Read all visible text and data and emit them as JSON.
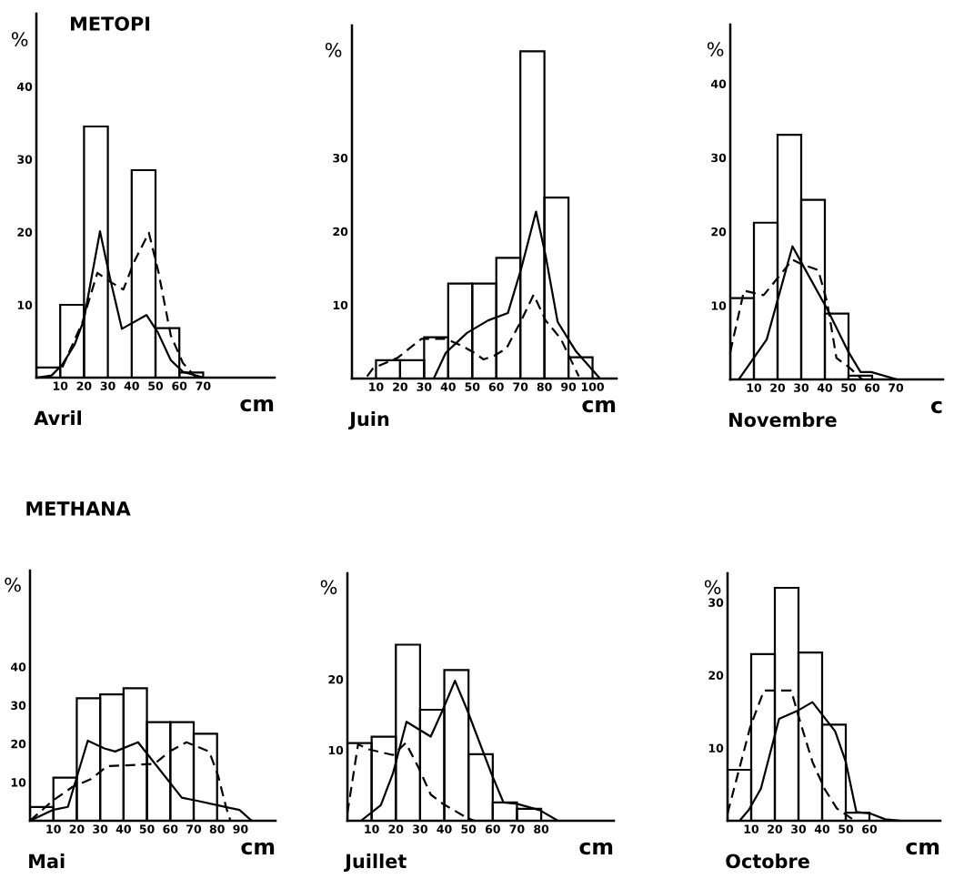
{
  "chart_data": [
    {
      "type": "histogram",
      "title": "Avril",
      "xlabel": "cm",
      "ylabel": "%",
      "annotations": [
        "METOPI"
      ],
      "color": "#000000",
      "xlim": [
        0,
        100
      ],
      "ylim": [
        0,
        50
      ],
      "xticks": [
        10,
        20,
        30,
        40,
        50,
        60,
        70
      ],
      "yticks": [
        10,
        20,
        30,
        40
      ],
      "bins": [
        0,
        10,
        20,
        30,
        40,
        50,
        60,
        70
      ],
      "values": [
        1.4,
        10,
        34.5,
        0,
        28.5,
        6.8,
        0.7
      ],
      "series": [
        {
          "type": "line",
          "line_style": "solid",
          "color": "#000000",
          "x": [
            0,
            6.4,
            10.9,
            16,
            19.9,
            26.7,
            30.8,
            35.9,
            46.2,
            51,
            56.4,
            61.5,
            69.2
          ],
          "values": [
            0,
            0.3,
            1.8,
            4.5,
            7.9,
            20.1,
            13.8,
            6.7,
            8.6,
            6.2,
            2.4,
            0.8,
            0.1
          ]
        },
        {
          "type": "line",
          "line_style": "dashed",
          "color": "#000000",
          "x": [
            10.9,
            19.2,
            25.6,
            30.8,
            36.5,
            41,
            47.2,
            51.3,
            56.4,
            61.5,
            66.7
          ],
          "values": [
            1.4,
            7.5,
            14.4,
            13.2,
            12.1,
            15.9,
            19.9,
            14.4,
            5.8,
            2,
            0.1
          ]
        }
      ]
    },
    {
      "type": "histogram",
      "title": "Juin",
      "xlabel": "cm",
      "ylabel": "%",
      "color": "#000000",
      "xlim": [
        0,
        110
      ],
      "ylim": [
        0,
        48
      ],
      "xticks": [
        10,
        20,
        30,
        40,
        50,
        60,
        70,
        80,
        90,
        100
      ],
      "yticks": [
        10,
        20,
        30
      ],
      "bins": [
        0,
        10,
        20,
        30,
        40,
        50,
        60,
        70,
        80,
        90,
        100
      ],
      "values": [
        0,
        2.5,
        2.5,
        5.6,
        12.9,
        12.9,
        16.4,
        44.5,
        24.6,
        2.9
      ],
      "series": [
        {
          "type": "line",
          "line_style": "solid",
          "color": "#000000",
          "x": [
            34,
            39,
            47.8,
            56.6,
            64.8,
            70.4,
            76.5,
            80.5,
            85.5,
            93.1,
            103.1
          ],
          "values": [
            0,
            3.5,
            6.2,
            7.9,
            8.9,
            15,
            22.7,
            16.7,
            7.7,
            3.7,
            0
          ]
        },
        {
          "type": "line",
          "line_style": "dashed",
          "color": "#000000",
          "x": [
            6.3,
            8.8,
            18.9,
            28.9,
            39,
            45.3,
            50.9,
            54.7,
            59.1,
            64.2,
            70.4,
            75.5,
            80.5,
            86.8,
            94.3
          ],
          "values": [
            0.3,
            1.4,
            2.8,
            5.4,
            5.4,
            4.5,
            3.5,
            2.6,
            3.1,
            4.1,
            7.9,
            11.4,
            7.9,
            5.4,
            0.3
          ]
        }
      ]
    },
    {
      "type": "histogram",
      "title": "Novembre",
      "xlabel": "c",
      "ylabel": "%",
      "color": "#000000",
      "xlim": [
        0,
        90
      ],
      "ylim": [
        0,
        48
      ],
      "xticks": [
        10,
        20,
        30,
        40,
        50,
        60,
        70
      ],
      "yticks": [
        10,
        20,
        30,
        40
      ],
      "bins": [
        0,
        10,
        20,
        30,
        40,
        50,
        60
      ],
      "values": [
        11,
        21.2,
        33.1,
        24.3,
        8.9,
        0.5
      ],
      "series": [
        {
          "type": "line",
          "line_style": "solid",
          "color": "#000000",
          "x": [
            3.8,
            15.4,
            26.3,
            30.1,
            41,
            50,
            55.1,
            59.6,
            70.5
          ],
          "values": [
            0.1,
            5.4,
            18,
            15.8,
            9.5,
            3.7,
            1,
            1,
            0
          ]
        },
        {
          "type": "line",
          "line_style": "dashed",
          "color": "#000000",
          "x": [
            0,
            5.8,
            14.1,
            20.5,
            26.3,
            30.1,
            37.2,
            41,
            44.9,
            50,
            55.8
          ],
          "values": [
            3.7,
            12,
            11.4,
            13.9,
            16.2,
            15.6,
            14.8,
            10.4,
            2.9,
            1.7,
            0
          ]
        }
      ]
    },
    {
      "type": "histogram",
      "title": "Mai",
      "xlabel": "cm",
      "ylabel": "%",
      "annotations": [
        "METHANA"
      ],
      "color": "#000000",
      "xlim": [
        0,
        105
      ],
      "ylim": [
        0,
        65
      ],
      "xticks": [
        10,
        20,
        30,
        40,
        50,
        60,
        70,
        80,
        90
      ],
      "yticks": [
        10,
        20,
        30,
        40
      ],
      "bins": [
        0,
        10,
        20,
        30,
        40,
        50,
        60,
        70,
        80
      ],
      "values": [
        3.6,
        11.2,
        31.8,
        32.8,
        34.4,
        25.6,
        25.6,
        22.6
      ],
      "series": [
        {
          "type": "line",
          "line_style": "solid",
          "color": "#000000",
          "x": [
            0,
            9.7,
            16.2,
            24.7,
            31.8,
            36.4,
            46.2,
            54.5,
            64.9,
            71.4,
            80.5,
            89.6,
            94.8
          ],
          "values": [
            0,
            2.8,
            3.6,
            20.8,
            18.8,
            18,
            20.4,
            14,
            6,
            5.2,
            4,
            2.8,
            0
          ]
        },
        {
          "type": "line",
          "line_style": "dashed",
          "color": "#000000",
          "x": [
            0,
            9.7,
            18.2,
            26,
            33.1,
            41.6,
            53.2,
            59.7,
            66.9,
            76.6,
            80.5,
            83.8,
            85.7
          ],
          "values": [
            0,
            5.2,
            8.8,
            10.8,
            14.2,
            14.4,
            14.8,
            18,
            20.4,
            18,
            11.6,
            3.6,
            0
          ]
        }
      ]
    },
    {
      "type": "histogram",
      "title": "Juillet",
      "xlabel": "cm",
      "ylabel": "%",
      "color": "#000000",
      "xlim": [
        0,
        110
      ],
      "ylim": [
        0,
        35
      ],
      "xticks": [
        10,
        20,
        30,
        40,
        50,
        60,
        70,
        80
      ],
      "yticks": [
        10,
        20
      ],
      "bins": [
        0,
        10,
        20,
        30,
        40,
        50,
        60,
        70,
        80
      ],
      "values": [
        11,
        11.9,
        24.9,
        15.7,
        21.3,
        9.4,
        2.6,
        1.7
      ],
      "series": [
        {
          "type": "line",
          "line_style": "solid",
          "color": "#000000",
          "x": [
            0,
            5.6,
            13.8,
            18.8,
            24.4,
            34.4,
            39.4,
            44.4,
            49.4,
            59.4,
            64.4,
            70,
            79.4,
            86.9
          ],
          "values": [
            0,
            0,
            2.2,
            6.7,
            14,
            11.9,
            15.7,
            19.8,
            15.7,
            6.7,
            2.6,
            2.4,
            1.5,
            0
          ]
        },
        {
          "type": "line",
          "line_style": "dashed",
          "color": "#000000",
          "x": [
            0,
            4.4,
            8.8,
            18.8,
            24.1,
            29.4,
            34.4,
            39.4,
            49.4,
            52.5
          ],
          "values": [
            1.1,
            10.8,
            10.1,
            9.3,
            11,
            7.5,
            3.7,
            2.4,
            0.4,
            0
          ]
        }
      ]
    },
    {
      "type": "histogram",
      "title": "Octobre",
      "xlabel": "cm",
      "ylabel": "%",
      "color": "#000000",
      "xlim": [
        0,
        90
      ],
      "ylim": [
        0,
        34
      ],
      "xticks": [
        10,
        20,
        30,
        40,
        50,
        60
      ],
      "yticks": [
        10,
        20,
        30
      ],
      "bins": [
        0,
        10,
        20,
        30,
        40,
        50,
        60
      ],
      "values": [
        7,
        22.9,
        32,
        23.1,
        13.2,
        1.1
      ],
      "series": [
        {
          "type": "line",
          "line_style": "solid",
          "color": "#000000",
          "x": [
            5.1,
            9,
            14.1,
            21.8,
            30.1,
            35.9,
            45.5,
            50,
            54.5,
            60.3,
            66.7,
            73.1
          ],
          "values": [
            0,
            1.5,
            4.4,
            14,
            15.2,
            16.3,
            12.3,
            8.1,
            1.2,
            1,
            0.2,
            0
          ]
        },
        {
          "type": "line",
          "line_style": "dashed",
          "color": "#000000",
          "x": [
            0,
            9.6,
            15.4,
            26.9,
            30.8,
            35.9,
            41,
            46.2,
            53.8
          ],
          "values": [
            1,
            12.9,
            17.9,
            17.9,
            13.5,
            8.1,
            4.4,
            1.7,
            0
          ]
        }
      ]
    }
  ]
}
